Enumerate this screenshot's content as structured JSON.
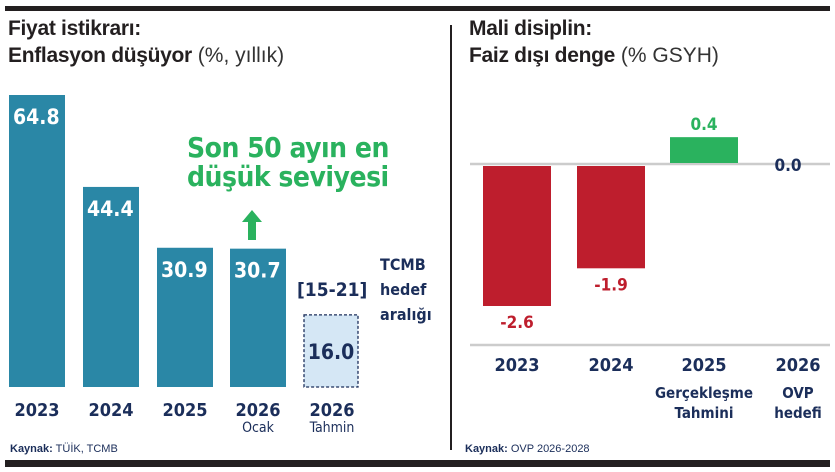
{
  "chart_data": [
    {
      "type": "bar",
      "title": "Fiyat istikrarı:",
      "subtitle": "Enflasyon düşüyor",
      "unit": "(%, yıllık)",
      "categories": [
        "2023",
        "2024",
        "2025",
        "2026",
        "2026"
      ],
      "sublabels": [
        "",
        "",
        "",
        "Ocak",
        "Tahmin"
      ],
      "values": [
        64.8,
        44.4,
        30.9,
        30.7,
        16.0
      ],
      "value_labels": [
        "64.8",
        "44.4",
        "30.9",
        "30.7",
        "16.0"
      ],
      "forecast_index": 4,
      "ylim": [
        0,
        64.8
      ],
      "annotation": {
        "lines": [
          "Son 50 ayın en",
          "düşük seviyesi"
        ],
        "target": "2026 Ocak"
      },
      "target_range": {
        "label": "[15-21]",
        "lines": [
          "TCMB",
          "hedef",
          "aralığı"
        ]
      },
      "source_label": "Kaynak:",
      "source": "TÜİK, TCMB",
      "colors": {
        "bar": "#2a87a6",
        "forecast_fill": "#d5e7f5",
        "forecast_border": "#1b2e5a",
        "annotation": "#2ab25e",
        "text": "#1b2e5a"
      }
    },
    {
      "type": "bar",
      "title": "Mali disiplin:",
      "subtitle": "Faiz dışı denge",
      "unit": "(% GSYH)",
      "categories": [
        "2023",
        "2024",
        "2025",
        "2026"
      ],
      "sublabels": [
        [],
        [],
        [
          "Gerçekleşme",
          "Tahmini"
        ],
        [
          "OVP",
          "hedefi"
        ]
      ],
      "values": [
        -2.6,
        -1.9,
        0.4,
        0.0
      ],
      "value_labels": [
        "-2.6",
        "-1.9",
        "0.4",
        "0.0"
      ],
      "ylim": [
        -2.6,
        0.4
      ],
      "source_label": "Kaynak:",
      "source": "OVP 2026-2028",
      "colors": {
        "negative": "#be1e2d",
        "positive": "#2ab25e",
        "zero": "#1b2e5a",
        "baseline": "#cccccc",
        "text": "#1b2e5a"
      }
    }
  ]
}
